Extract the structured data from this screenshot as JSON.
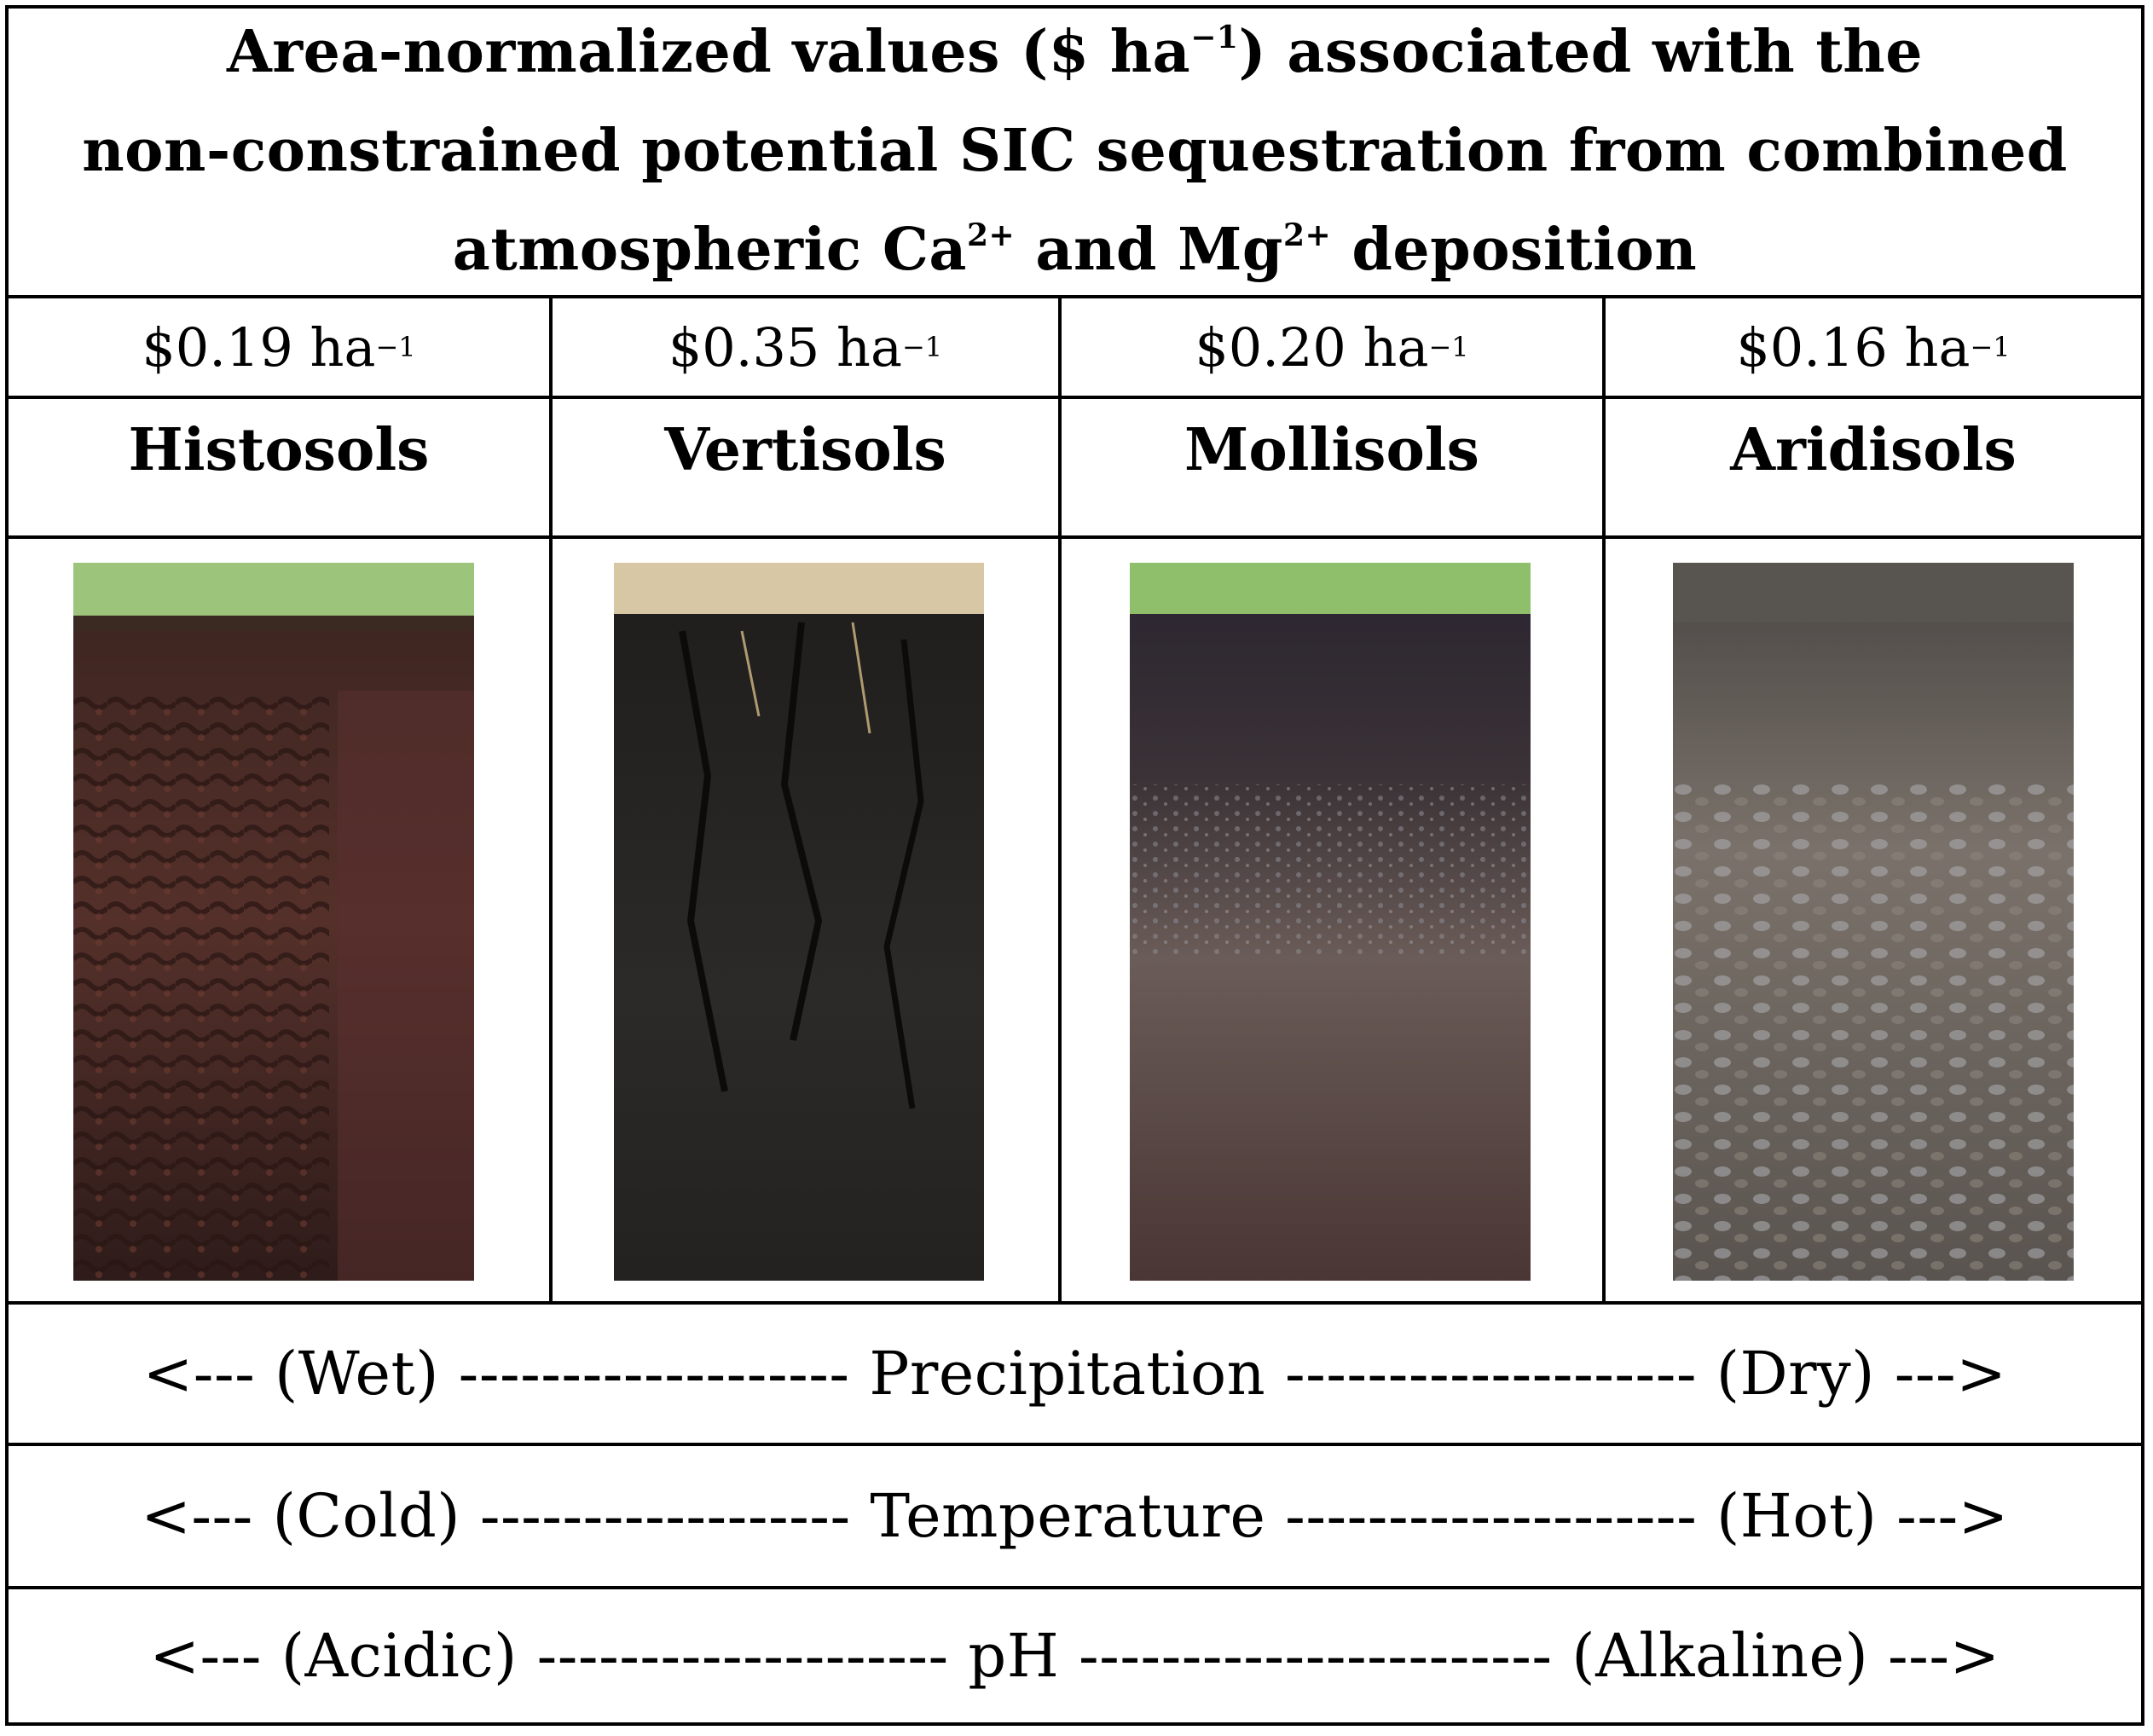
{
  "title": {
    "line1": "Area-normalized values ($ ha",
    "line1_sup": "−1",
    "line1_end": ") associated with the",
    "line2": "non-constrained potential SIC sequestration from combined",
    "line3_a": "atmospheric Ca",
    "line3_sup1": "2+",
    "line3_b": " and Mg",
    "line3_sup2": "2+",
    "line3_c": " deposition"
  },
  "soils": [
    {
      "value": "$0.19 ha",
      "unit_sup": "−1",
      "name": "Histosols"
    },
    {
      "value": "$0.35 ha",
      "unit_sup": "−1",
      "name": "Vertisols"
    },
    {
      "value": "$0.20 ha",
      "unit_sup": "−1",
      "name": "Mollisols"
    },
    {
      "value": "$0.16 ha",
      "unit_sup": "−1",
      "name": "Aridisols"
    }
  ],
  "gradients": [
    {
      "text": "<--- (Wet) ------------------- Precipitation -------------------- (Dry) --->"
    },
    {
      "text": "<--- (Cold) ------------------ Temperature -------------------- (Hot) --->"
    },
    {
      "text": "<--- (Acidic) -------------------- pH ----------------------- (Alkaline) --->"
    }
  ],
  "colors": {
    "border": "#000000",
    "histosol_soil": "#4a2a22",
    "vertisol_soil": "#2a2826",
    "mollisol_soil": "#3e3030",
    "aridisol_soil": "#6a635e",
    "grass": "#8fbf6a"
  }
}
